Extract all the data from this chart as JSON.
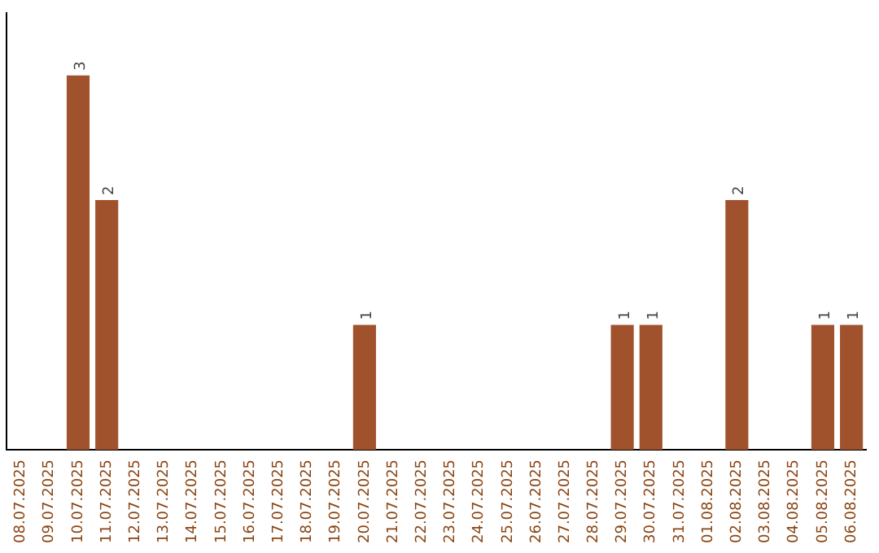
{
  "chart_data": {
    "type": "bar",
    "categories": [
      "08.07.2025",
      "09.07.2025",
      "10.07.2025",
      "11.07.2025",
      "12.07.2025",
      "13.07.2025",
      "14.07.2025",
      "15.07.2025",
      "16.07.2025",
      "17.07.2025",
      "18.07.2025",
      "19.07.2025",
      "20.07.2025",
      "21.07.2025",
      "22.07.2025",
      "23.07.2025",
      "24.07.2025",
      "25.07.2025",
      "26.07.2025",
      "27.07.2025",
      "28.07.2025",
      "29.07.2025",
      "30.07.2025",
      "31.07.2025",
      "01.08.2025",
      "02.08.2025",
      "03.08.2025",
      "04.08.2025",
      "05.08.2025",
      "06.08.2025"
    ],
    "values": [
      0,
      0,
      3,
      2,
      0,
      0,
      0,
      0,
      0,
      0,
      0,
      0,
      1,
      0,
      0,
      0,
      0,
      0,
      0,
      0,
      0,
      1,
      1,
      0,
      0,
      2,
      0,
      0,
      1,
      1
    ],
    "value_labels": [
      null,
      null,
      "3",
      "2",
      null,
      null,
      null,
      null,
      null,
      null,
      null,
      null,
      "1",
      null,
      null,
      null,
      null,
      null,
      null,
      null,
      null,
      "1",
      "1",
      null,
      null,
      "2",
      null,
      null,
      "1",
      "1"
    ],
    "color": "#a0522d",
    "grid": false,
    "legend": false,
    "tick_labels": "x"
  }
}
